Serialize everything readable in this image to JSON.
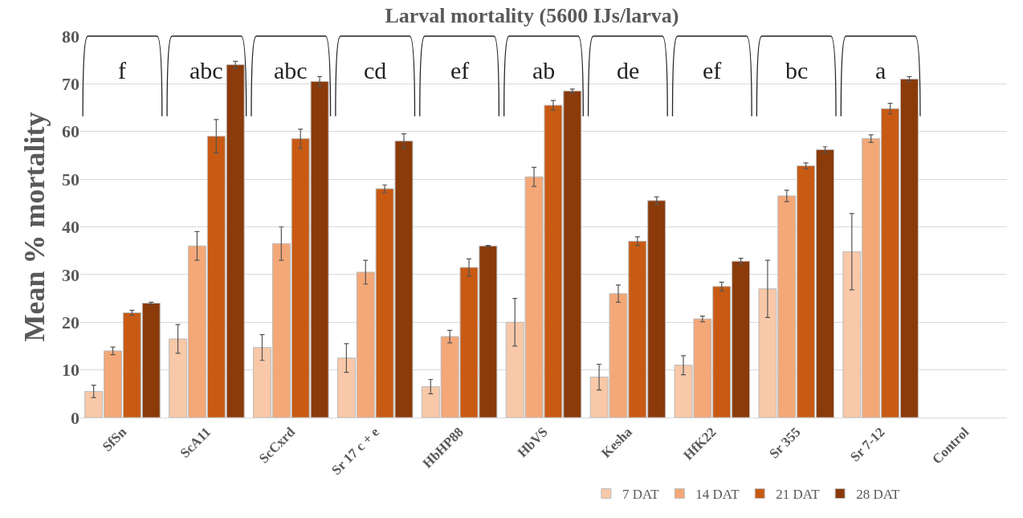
{
  "chart_data": {
    "type": "bar",
    "title": "Larval mortality (5600 IJs/larva)",
    "ylabel": "Mean % mortality",
    "categories": [
      "SfSn",
      "ScA11",
      "ScCxrd",
      "Sr 17 c + e",
      "HbHP88",
      "HbVS",
      "Kesha",
      "HfK22",
      "Sr 355",
      "Sr 7-12",
      "Control"
    ],
    "series": [
      {
        "name": "7 DAT",
        "color": "#f8c8a8",
        "values": [
          5.5,
          16.5,
          14.7,
          12.5,
          6.5,
          20,
          8.5,
          11,
          27,
          34.8,
          null
        ],
        "errors": [
          1.3,
          3,
          2.7,
          3,
          1.5,
          5,
          2.7,
          2,
          6,
          8,
          null
        ]
      },
      {
        "name": "14 DAT",
        "color": "#f4a878",
        "values": [
          14,
          36,
          36.5,
          30.5,
          17,
          50.5,
          26,
          20.7,
          46.5,
          58.5,
          null
        ],
        "errors": [
          0.8,
          3,
          3.5,
          2.5,
          1.3,
          2,
          1.8,
          0.6,
          1.2,
          0.8,
          null
        ]
      },
      {
        "name": "21 DAT",
        "color": "#c85a14",
        "values": [
          22,
          59,
          58.5,
          48,
          31.5,
          65.5,
          37,
          27.5,
          52.8,
          64.8,
          null
        ],
        "errors": [
          0.5,
          3.5,
          2,
          0.8,
          1.8,
          1,
          0.9,
          0.9,
          0.6,
          1.1,
          null
        ]
      },
      {
        "name": "28 DAT",
        "color": "#8b3a0a",
        "values": [
          24,
          74,
          70.5,
          58,
          36,
          68.5,
          45.5,
          32.8,
          56.2,
          71,
          null
        ],
        "errors": [
          0.2,
          0.7,
          1,
          1.5,
          0.1,
          0.4,
          0.8,
          0.6,
          0.6,
          0.5,
          null
        ]
      }
    ],
    "annotations": [
      "f",
      "abc",
      "abc",
      "cd",
      "ef",
      "ab",
      "de",
      "ef",
      "bc",
      "a"
    ],
    "ylim": [
      0,
      80
    ],
    "yticks": [
      0,
      10,
      20,
      30,
      40,
      50,
      60,
      70,
      80
    ],
    "grid": "y",
    "legend": "bottom"
  }
}
